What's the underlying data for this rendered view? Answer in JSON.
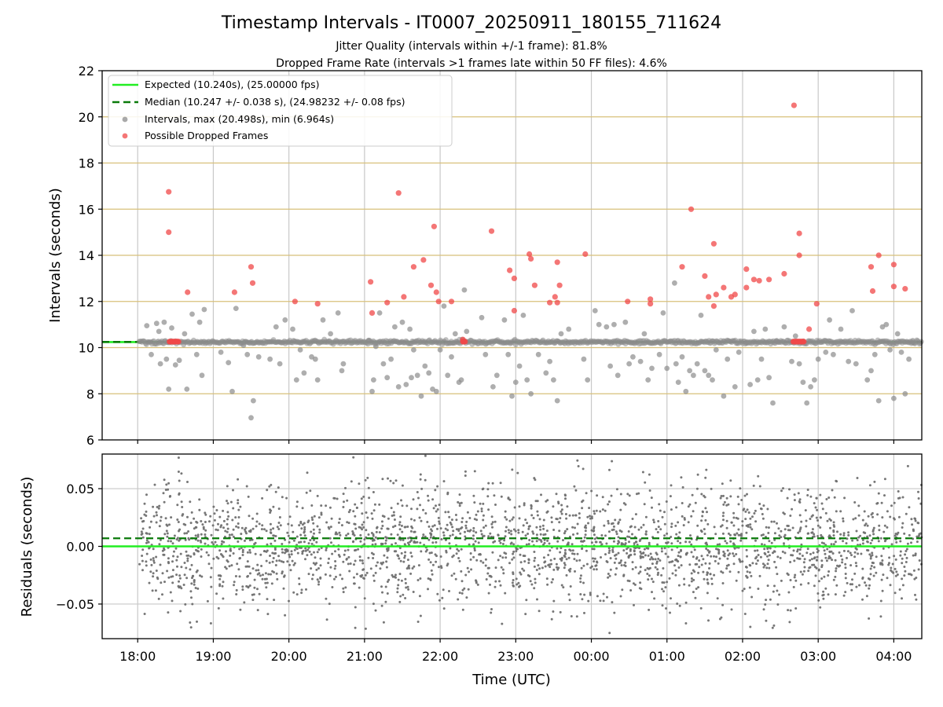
{
  "figure": {
    "title": "Timestamp Intervals - IT0007_20250911_180155_711624",
    "subtitle_1": "Jitter Quality (intervals within +/-1 frame): 81.8%",
    "subtitle_2": "Dropped Frame Rate (intervals >1 frames late within 50 FF files): 4.6%",
    "xlabel": "Time (UTC)"
  },
  "colors": {
    "expected": "#22ee22",
    "median": "#0a7a0a",
    "intervals": "#8c8c8c",
    "dropped": "#f04848",
    "hgrid_top": "#d8c07a",
    "vgrid": "#c8c8c8",
    "residual_points": "#707070"
  },
  "chart_data": [
    {
      "type": "scatter",
      "ylabel": "Intervals (seconds)",
      "ylim": [
        6,
        22
      ],
      "yticks": [
        "6",
        "8",
        "10",
        "12",
        "14",
        "16",
        "18",
        "20",
        "22"
      ],
      "xlim_hours": [
        17.53,
        28.37
      ],
      "xticks": [
        "18:00",
        "19:00",
        "20:00",
        "21:00",
        "22:00",
        "23:00",
        "00:00",
        "01:00",
        "02:00",
        "03:00",
        "04:00"
      ],
      "grid": true,
      "legend_position": "upper-left",
      "expected": {
        "label": "Expected (10.240s), (25.00000 fps)",
        "value": 10.24
      },
      "median": {
        "label": "Median (10.247 +/- 0.038 s), (24.98232 +/- 0.08 fps)",
        "value": 10.247
      },
      "intervals": {
        "label": "Intervals, max (20.498s), min (6.964s)",
        "baseline": 10.24,
        "points": [
          [
            18.12,
            10.95
          ],
          [
            18.18,
            9.7
          ],
          [
            18.25,
            11.05
          ],
          [
            18.28,
            10.7
          ],
          [
            18.3,
            9.3
          ],
          [
            18.35,
            11.1
          ],
          [
            18.38,
            9.5
          ],
          [
            18.41,
            8.2
          ],
          [
            18.45,
            10.85
          ],
          [
            18.5,
            9.25
          ],
          [
            18.55,
            9.45
          ],
          [
            18.62,
            10.6
          ],
          [
            18.65,
            8.2
          ],
          [
            18.72,
            11.45
          ],
          [
            18.78,
            9.7
          ],
          [
            18.82,
            11.1
          ],
          [
            18.85,
            8.8
          ],
          [
            18.88,
            11.65
          ],
          [
            19.1,
            9.8
          ],
          [
            19.2,
            9.35
          ],
          [
            19.25,
            8.1
          ],
          [
            19.3,
            11.7
          ],
          [
            19.4,
            10.1
          ],
          [
            19.45,
            9.7
          ],
          [
            19.5,
            6.96
          ],
          [
            19.53,
            7.7
          ],
          [
            19.6,
            9.6
          ],
          [
            19.75,
            9.5
          ],
          [
            19.83,
            10.9
          ],
          [
            19.88,
            9.3
          ],
          [
            19.95,
            11.2
          ],
          [
            20.05,
            10.8
          ],
          [
            20.1,
            8.6
          ],
          [
            20.15,
            9.9
          ],
          [
            20.2,
            8.9
          ],
          [
            20.3,
            9.6
          ],
          [
            20.35,
            9.5
          ],
          [
            20.38,
            8.6
          ],
          [
            20.45,
            11.2
          ],
          [
            20.55,
            10.6
          ],
          [
            20.65,
            11.5
          ],
          [
            20.7,
            9.0
          ],
          [
            20.72,
            9.3
          ],
          [
            21.05,
            10.3
          ],
          [
            21.1,
            8.1
          ],
          [
            21.12,
            8.6
          ],
          [
            21.15,
            10.05
          ],
          [
            21.2,
            11.5
          ],
          [
            21.25,
            9.3
          ],
          [
            21.3,
            8.7
          ],
          [
            21.35,
            9.5
          ],
          [
            21.4,
            10.9
          ],
          [
            21.45,
            8.3
          ],
          [
            21.5,
            11.1
          ],
          [
            21.55,
            8.4
          ],
          [
            21.6,
            10.8
          ],
          [
            21.62,
            8.7
          ],
          [
            21.65,
            9.9
          ],
          [
            21.7,
            8.8
          ],
          [
            21.75,
            7.9
          ],
          [
            21.8,
            9.2
          ],
          [
            21.85,
            8.9
          ],
          [
            21.9,
            8.2
          ],
          [
            21.95,
            8.1
          ],
          [
            22.0,
            9.9
          ],
          [
            22.05,
            11.8
          ],
          [
            22.1,
            8.8
          ],
          [
            22.15,
            9.6
          ],
          [
            22.2,
            10.6
          ],
          [
            22.25,
            8.5
          ],
          [
            22.28,
            8.6
          ],
          [
            22.32,
            12.5
          ],
          [
            22.35,
            10.7
          ],
          [
            22.55,
            11.3
          ],
          [
            22.6,
            9.7
          ],
          [
            22.7,
            8.3
          ],
          [
            22.75,
            8.8
          ],
          [
            22.85,
            11.2
          ],
          [
            22.9,
            9.7
          ],
          [
            22.95,
            7.9
          ],
          [
            23.0,
            8.5
          ],
          [
            23.05,
            9.2
          ],
          [
            23.1,
            11.4
          ],
          [
            23.15,
            8.6
          ],
          [
            23.2,
            8.0
          ],
          [
            23.3,
            9.7
          ],
          [
            23.4,
            8.9
          ],
          [
            23.45,
            9.4
          ],
          [
            23.5,
            8.6
          ],
          [
            23.55,
            7.7
          ],
          [
            23.6,
            10.6
          ],
          [
            23.7,
            10.8
          ],
          [
            23.9,
            9.5
          ],
          [
            23.95,
            8.6
          ],
          [
            24.05,
            11.6
          ],
          [
            24.1,
            11.0
          ],
          [
            24.2,
            10.9
          ],
          [
            24.25,
            9.2
          ],
          [
            24.3,
            11.0
          ],
          [
            24.35,
            8.8
          ],
          [
            24.45,
            11.1
          ],
          [
            24.5,
            9.3
          ],
          [
            24.55,
            9.6
          ],
          [
            24.65,
            9.4
          ],
          [
            24.7,
            10.6
          ],
          [
            24.75,
            8.6
          ],
          [
            24.8,
            9.1
          ],
          [
            24.9,
            9.7
          ],
          [
            24.95,
            11.5
          ],
          [
            25.0,
            9.1
          ],
          [
            25.1,
            12.8
          ],
          [
            25.12,
            9.3
          ],
          [
            25.15,
            8.5
          ],
          [
            25.2,
            9.6
          ],
          [
            25.25,
            8.1
          ],
          [
            25.3,
            9.0
          ],
          [
            25.35,
            8.8
          ],
          [
            25.4,
            9.3
          ],
          [
            25.45,
            11.4
          ],
          [
            25.5,
            9.0
          ],
          [
            25.55,
            8.8
          ],
          [
            25.6,
            8.6
          ],
          [
            25.65,
            9.9
          ],
          [
            25.75,
            7.9
          ],
          [
            25.8,
            9.5
          ],
          [
            25.9,
            8.3
          ],
          [
            25.95,
            9.8
          ],
          [
            26.05,
            10.2
          ],
          [
            26.1,
            8.4
          ],
          [
            26.15,
            10.7
          ],
          [
            26.2,
            8.6
          ],
          [
            26.25,
            9.5
          ],
          [
            26.3,
            10.8
          ],
          [
            26.35,
            8.7
          ],
          [
            26.4,
            7.6
          ],
          [
            26.45,
            10.3
          ],
          [
            26.55,
            10.9
          ],
          [
            26.65,
            9.4
          ],
          [
            26.7,
            10.5
          ],
          [
            26.75,
            9.3
          ],
          [
            26.8,
            8.5
          ],
          [
            26.85,
            7.6
          ],
          [
            26.9,
            8.3
          ],
          [
            26.95,
            8.6
          ],
          [
            27.0,
            9.5
          ],
          [
            27.1,
            9.8
          ],
          [
            27.15,
            11.2
          ],
          [
            27.2,
            9.7
          ],
          [
            27.3,
            10.8
          ],
          [
            27.4,
            9.4
          ],
          [
            27.45,
            11.6
          ],
          [
            27.5,
            9.3
          ],
          [
            27.65,
            8.6
          ],
          [
            27.7,
            9.0
          ],
          [
            27.75,
            9.7
          ],
          [
            27.8,
            7.7
          ],
          [
            27.85,
            10.9
          ],
          [
            27.9,
            11.0
          ],
          [
            27.95,
            9.9
          ],
          [
            28.0,
            7.8
          ],
          [
            28.05,
            10.6
          ],
          [
            28.1,
            9.8
          ],
          [
            28.15,
            8.0
          ],
          [
            28.2,
            9.5
          ],
          [
            28.25,
            10.3
          ]
        ]
      },
      "dropped": {
        "label": "Possible Dropped Frames",
        "cluster_value": 10.26,
        "clusters": [
          [
            18.42,
            18.55
          ],
          [
            22.3,
            22.34
          ],
          [
            26.67,
            26.82
          ]
        ],
        "points": [
          [
            18.41,
            16.75
          ],
          [
            18.41,
            15.0
          ],
          [
            18.66,
            12.4
          ],
          [
            19.28,
            12.4
          ],
          [
            19.5,
            13.5
          ],
          [
            19.52,
            12.8
          ],
          [
            20.08,
            12.0
          ],
          [
            20.38,
            11.9
          ],
          [
            21.08,
            12.85
          ],
          [
            21.1,
            11.5
          ],
          [
            21.3,
            11.95
          ],
          [
            21.45,
            16.7
          ],
          [
            21.52,
            12.2
          ],
          [
            21.65,
            13.5
          ],
          [
            21.78,
            13.8
          ],
          [
            21.88,
            12.7
          ],
          [
            21.92,
            15.25
          ],
          [
            21.95,
            12.4
          ],
          [
            21.98,
            12.0
          ],
          [
            22.15,
            12.0
          ],
          [
            22.3,
            10.35
          ],
          [
            22.68,
            15.05
          ],
          [
            22.92,
            13.35
          ],
          [
            22.98,
            13.0
          ],
          [
            22.98,
            11.6
          ],
          [
            23.18,
            14.05
          ],
          [
            23.2,
            13.85
          ],
          [
            23.25,
            12.7
          ],
          [
            23.45,
            11.95
          ],
          [
            23.52,
            12.2
          ],
          [
            23.55,
            13.7
          ],
          [
            23.55,
            11.95
          ],
          [
            23.58,
            12.7
          ],
          [
            23.92,
            14.05
          ],
          [
            24.48,
            12.0
          ],
          [
            24.78,
            12.1
          ],
          [
            24.78,
            11.9
          ],
          [
            25.2,
            13.5
          ],
          [
            25.32,
            16.0
          ],
          [
            25.5,
            13.1
          ],
          [
            25.55,
            12.2
          ],
          [
            25.62,
            14.5
          ],
          [
            25.62,
            11.8
          ],
          [
            25.65,
            12.3
          ],
          [
            25.75,
            12.6
          ],
          [
            25.85,
            12.2
          ],
          [
            25.9,
            12.3
          ],
          [
            26.05,
            12.6
          ],
          [
            26.05,
            13.4
          ],
          [
            26.15,
            12.95
          ],
          [
            26.22,
            12.9
          ],
          [
            26.35,
            12.95
          ],
          [
            26.55,
            13.2
          ],
          [
            26.68,
            20.5
          ],
          [
            26.75,
            14.95
          ],
          [
            26.75,
            14.0
          ],
          [
            26.88,
            10.8
          ],
          [
            26.98,
            11.9
          ],
          [
            27.7,
            13.5
          ],
          [
            27.72,
            12.45
          ],
          [
            27.8,
            14.0
          ],
          [
            28.0,
            13.6
          ],
          [
            28.0,
            12.65
          ],
          [
            28.15,
            12.55
          ]
        ]
      }
    },
    {
      "type": "scatter",
      "ylabel": "Residuals (seconds)",
      "ylim": [
        -0.08,
        0.08
      ],
      "yticks": [
        "−0.05",
        "0.00",
        "0.05"
      ],
      "ytick_values": [
        -0.05,
        0.0,
        0.05
      ],
      "xlim_hours": [
        17.53,
        28.37
      ],
      "xticks": [
        "18:00",
        "19:00",
        "20:00",
        "21:00",
        "22:00",
        "23:00",
        "00:00",
        "01:00",
        "02:00",
        "03:00",
        "04:00"
      ],
      "grid": true,
      "expected_residual": 0.0,
      "median_residual": 0.007,
      "points_range_hours": [
        18.02,
        28.37
      ],
      "points_count": 2600
    }
  ]
}
